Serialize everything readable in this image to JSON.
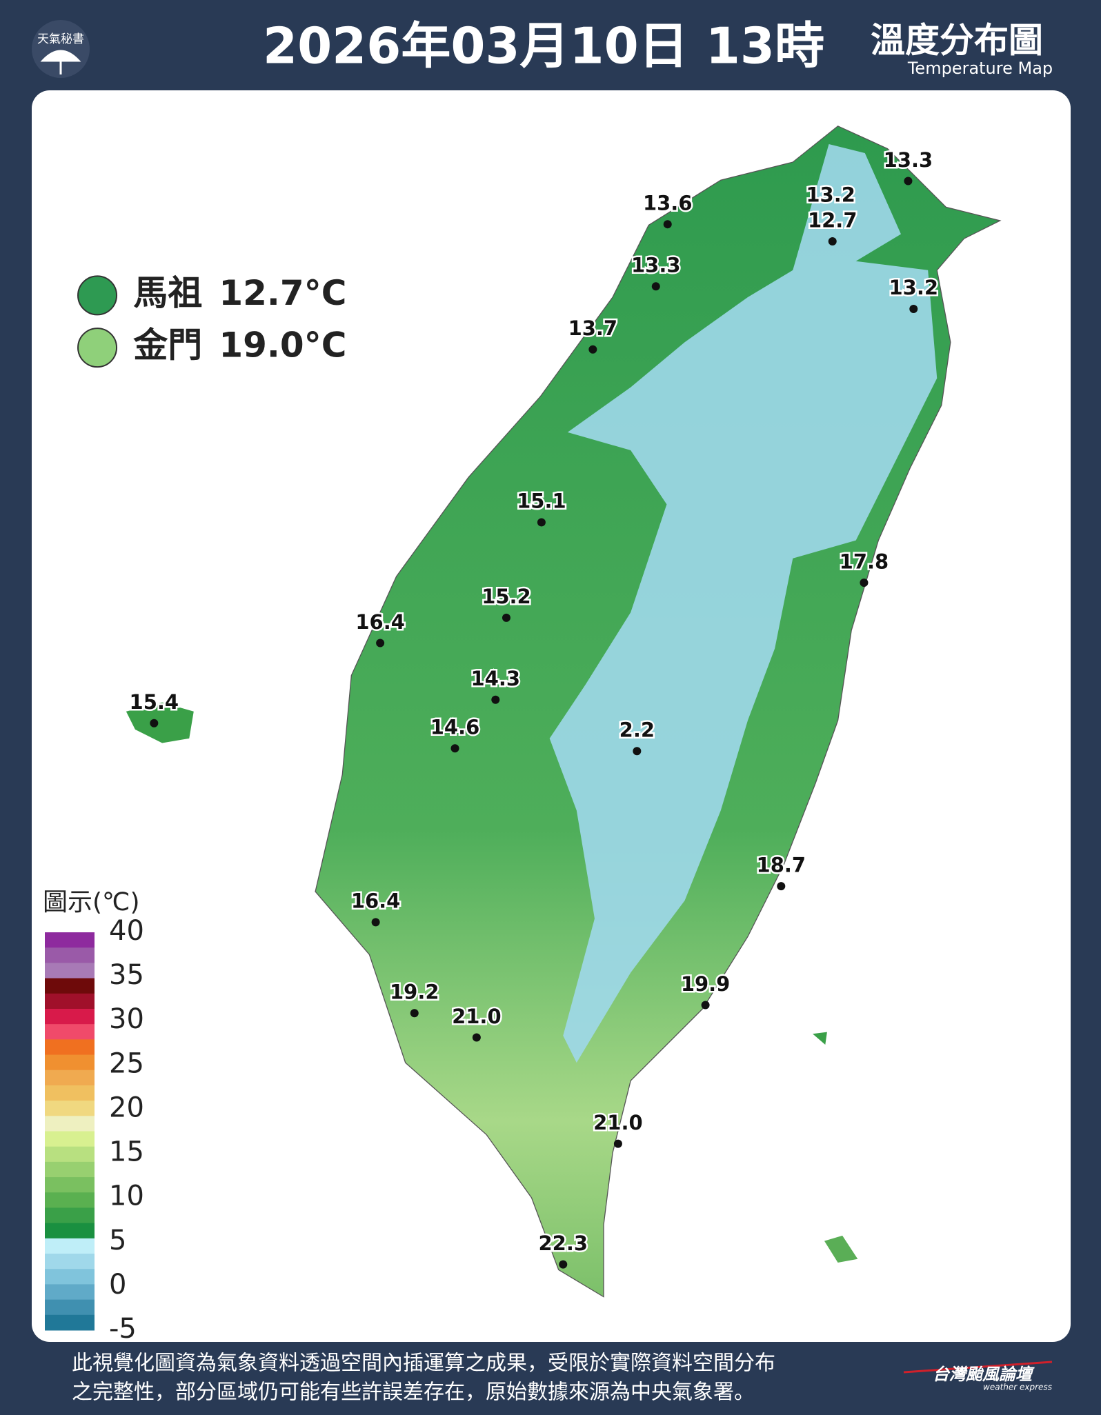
{
  "header": {
    "logo": "天氣秘書",
    "title": "2026年03月10日 13時",
    "map_title": "溫度分布圖",
    "map_subtitle": "Temperature Map"
  },
  "islands": [
    {
      "name": "馬祖",
      "value": "12.7°C",
      "color": "#2e9a52"
    },
    {
      "name": "金門",
      "value": "19.0°C",
      "color": "#8fd07a"
    }
  ],
  "stations": [
    "13.3",
    "13.2",
    "12.7",
    "13.6",
    "13.3",
    "13.2",
    "13.7",
    "15.1",
    "17.8",
    "15.2",
    "16.4",
    "14.3",
    "15.4",
    "14.6",
    "2.2",
    "18.7",
    "16.4",
    "19.9",
    "19.2",
    "21.0",
    "21.0",
    "22.3"
  ],
  "scale": {
    "title": "圖示(℃)",
    "ticks": [
      40,
      35,
      30,
      25,
      20,
      15,
      10,
      5,
      0,
      -5
    ],
    "colors": [
      "#8e2a9e",
      "#9a5aa8",
      "#a87ab6",
      "#6e0a0a",
      "#a0102a",
      "#d81a4a",
      "#f04a6a",
      "#f07020",
      "#f09030",
      "#f0aa50",
      "#f0c060",
      "#f0d880",
      "#eef0c0",
      "#d8f090",
      "#b8e080",
      "#98d070",
      "#7ac060",
      "#5ab050",
      "#3aa048",
      "#1a9040",
      "#bfeef8",
      "#a0d8ea",
      "#80c4dc",
      "#60aac8",
      "#4090b0",
      "#207898"
    ]
  },
  "footer": {
    "text": [
      "此視覺化圖資為氣象資料透過空間內插運算之成果，受限於實際資料空間分布",
      "之完整性，部分區域仍可能有些許誤差存在，原始數據來源為中央氣象署。"
    ],
    "brand": "台灣颱風論壇",
    "brand_sub": "weather express"
  }
}
